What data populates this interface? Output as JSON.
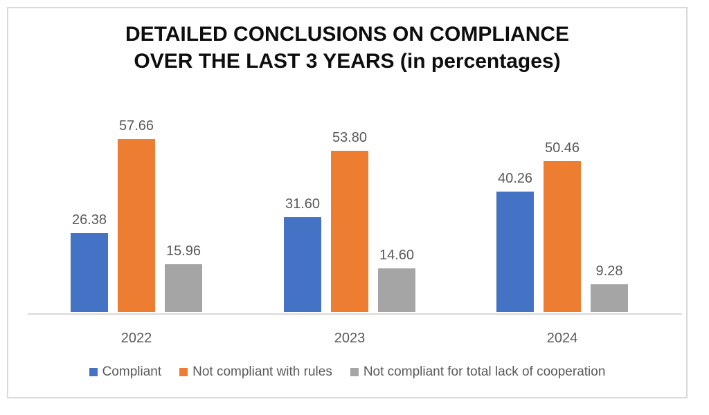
{
  "title": {
    "line1": "DETAILED CONCLUSIONS ON COMPLIANCE",
    "line2": "OVER THE LAST 3 YEARS (in percentages)"
  },
  "colors": {
    "compliant": "#4472C4",
    "not_compliant_rules": "#ED7D31",
    "not_compliant_cooperation": "#A5A5A5",
    "label_text": "#595959",
    "axis_line": "#D9D9D9",
    "frame_border": "#D9D9D9",
    "title_text": "#0D0D0D"
  },
  "chart_data": {
    "type": "bar",
    "title": "DETAILED CONCLUSIONS ON COMPLIANCE OVER THE LAST 3 YEARS (in percentages)",
    "categories": [
      "2022",
      "2023",
      "2024"
    ],
    "series": [
      {
        "name": "Compliant",
        "color": "#4472C4",
        "values": [
          26.38,
          31.6,
          40.26
        ]
      },
      {
        "name": "Not compliant with rules",
        "color": "#ED7D31",
        "values": [
          57.66,
          53.8,
          50.46
        ]
      },
      {
        "name": "Not compliant for total lack of cooperation",
        "color": "#A5A5A5",
        "values": [
          15.96,
          14.6,
          9.28
        ]
      }
    ],
    "data_labels_shown": true,
    "data_label_format": "0.00",
    "xlabel": "",
    "ylabel": "",
    "ylim": [
      0,
      60
    ],
    "grid": false,
    "y_axis_shown": false,
    "legend_position": "bottom"
  }
}
